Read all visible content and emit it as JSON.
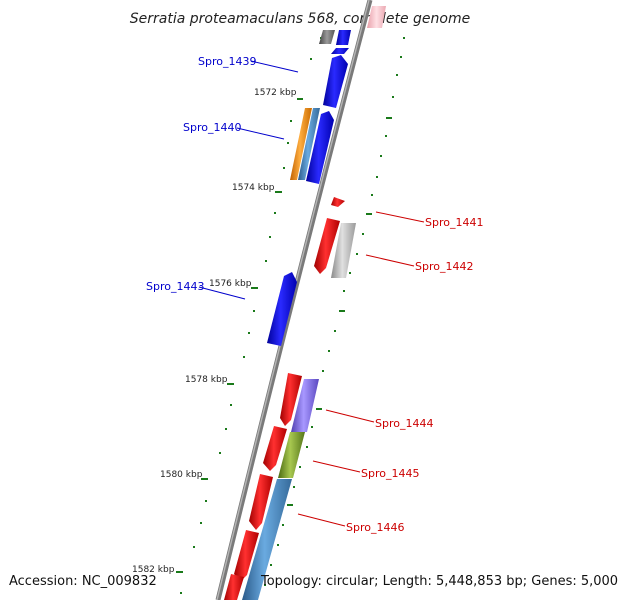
{
  "title": "Serratia proteamaculans 568, complete genome",
  "footer": {
    "accession": "Accession: NC_009832",
    "summary": "Topology: circular; Length: 5,448,853 bp; Genes: 5,000"
  },
  "ticks": [
    "1572 kbp",
    "1574 kbp",
    "1576 kbp",
    "1578 kbp",
    "1580 kbp",
    "1582 kbp"
  ],
  "genes": [
    {
      "id": "Spro_1439",
      "strand": "forward",
      "label_color": "#0000cc"
    },
    {
      "id": "Spro_1440",
      "strand": "forward",
      "label_color": "#0000cc"
    },
    {
      "id": "Spro_1441",
      "strand": "reverse",
      "label_color": "#cc0000"
    },
    {
      "id": "Spro_1442",
      "strand": "reverse",
      "label_color": "#cc0000"
    },
    {
      "id": "Spro_1443",
      "strand": "forward",
      "label_color": "#0000cc"
    },
    {
      "id": "Spro_1444",
      "strand": "reverse",
      "label_color": "#cc0000"
    },
    {
      "id": "Spro_1445",
      "strand": "reverse",
      "label_color": "#cc0000"
    },
    {
      "id": "Spro_1446",
      "strand": "reverse",
      "label_color": "#cc0000"
    }
  ],
  "colors": {
    "forward_cds": "#1010ee",
    "reverse_cds": "#ee1111",
    "backbone": "#7a7a7a",
    "tick": "#1a7a1a",
    "orange_feature": "#f08c1a",
    "steelblue_feature": "#4a8ac4",
    "grey_feature": "#b8b8b8",
    "purple_feature": "#8070d8",
    "olive_feature": "#7a9a2a",
    "pink_feature": "#f8c0c8",
    "dark_grey_feature": "#666666"
  }
}
